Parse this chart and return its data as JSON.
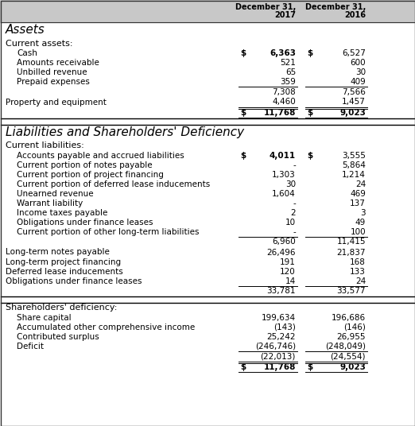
{
  "header_bg": "#c8c8c8",
  "white_bg": "#ffffff",
  "border_color": "#333333",
  "rows": [
    {
      "label": "Assets",
      "v1": "",
      "v2": "",
      "style": "section_header"
    },
    {
      "label": "Current assets:",
      "v1": "",
      "v2": "",
      "style": "subsection"
    },
    {
      "label": "Cash",
      "v1": "6,363",
      "v2": "6,527",
      "style": "data",
      "indent": 1,
      "d1": true,
      "d2": true
    },
    {
      "label": "Amounts receivable",
      "v1": "521",
      "v2": "600",
      "style": "data",
      "indent": 1
    },
    {
      "label": "Unbilled revenue",
      "v1": "65",
      "v2": "30",
      "style": "data",
      "indent": 1
    },
    {
      "label": "Prepaid expenses",
      "v1": "359",
      "v2": "409",
      "style": "data",
      "indent": 1
    },
    {
      "label": "",
      "v1": "7,308",
      "v2": "7,566",
      "style": "subtotal"
    },
    {
      "label": "Property and equipment",
      "v1": "4,460",
      "v2": "1,457",
      "style": "data_gap"
    },
    {
      "label": "",
      "v1": "11,768",
      "v2": "9,023",
      "style": "total",
      "d1": true,
      "d2": true
    },
    {
      "label": "",
      "v1": "",
      "v2": "",
      "style": "section_divider"
    },
    {
      "label": "Liabilities and Shareholders' Deficiency",
      "v1": "",
      "v2": "",
      "style": "section_header"
    },
    {
      "label": "Current liabilities:",
      "v1": "",
      "v2": "",
      "style": "subsection"
    },
    {
      "label": "Accounts payable and accrued liabilities",
      "v1": "4,011",
      "v2": "3,555",
      "style": "data",
      "indent": 1,
      "d1": true,
      "d2": true
    },
    {
      "label": "Current portion of notes payable",
      "v1": "-",
      "v2": "5,864",
      "style": "data",
      "indent": 1
    },
    {
      "label": "Current portion of project financing",
      "v1": "1,303",
      "v2": "1,214",
      "style": "data",
      "indent": 1
    },
    {
      "label": "Current portion of deferred lease inducements",
      "v1": "30",
      "v2": "24",
      "style": "data",
      "indent": 1
    },
    {
      "label": "Unearned revenue",
      "v1": "1,604",
      "v2": "469",
      "style": "data",
      "indent": 1
    },
    {
      "label": "Warrant liability",
      "v1": "-",
      "v2": "137",
      "style": "data",
      "indent": 1
    },
    {
      "label": "Income taxes payable",
      "v1": "2",
      "v2": "3",
      "style": "data",
      "indent": 1
    },
    {
      "label": "Obligations under finance leases",
      "v1": "10",
      "v2": "49",
      "style": "data",
      "indent": 1
    },
    {
      "label": "Current portion of other long-term liabilities",
      "v1": "-",
      "v2": "100",
      "style": "data",
      "indent": 1
    },
    {
      "label": "",
      "v1": "6,960",
      "v2": "11,415",
      "style": "subtotal"
    },
    {
      "label": "Long-term notes payable",
      "v1": "26,496",
      "v2": "21,837",
      "style": "data_gap"
    },
    {
      "label": "Long-term project financing",
      "v1": "191",
      "v2": "168",
      "style": "data"
    },
    {
      "label": "Deferred lease inducements",
      "v1": "120",
      "v2": "133",
      "style": "data"
    },
    {
      "label": "Obligations under finance leases",
      "v1": "14",
      "v2": "24",
      "style": "data"
    },
    {
      "label": "",
      "v1": "33,781",
      "v2": "33,577",
      "style": "subtotal"
    },
    {
      "label": "",
      "v1": "",
      "v2": "",
      "style": "section_divider"
    },
    {
      "label": "Shareholders' deficiency:",
      "v1": "",
      "v2": "",
      "style": "subsection"
    },
    {
      "label": "Share capital",
      "v1": "199,634",
      "v2": "196,686",
      "style": "data",
      "indent": 1
    },
    {
      "label": "Accumulated other comprehensive income",
      "v1": "(143)",
      "v2": "(146)",
      "style": "data",
      "indent": 1
    },
    {
      "label": "Contributed surplus",
      "v1": "25,242",
      "v2": "26,955",
      "style": "data",
      "indent": 1
    },
    {
      "label": "Deficit",
      "v1": "(246,746)",
      "v2": "(248,049)",
      "style": "data",
      "indent": 1
    },
    {
      "label": "",
      "v1": "(22,013)",
      "v2": "(24,554)",
      "style": "subtotal"
    },
    {
      "label": "",
      "v1": "11,768",
      "v2": "9,023",
      "style": "total",
      "d1": true,
      "d2": true
    }
  ]
}
